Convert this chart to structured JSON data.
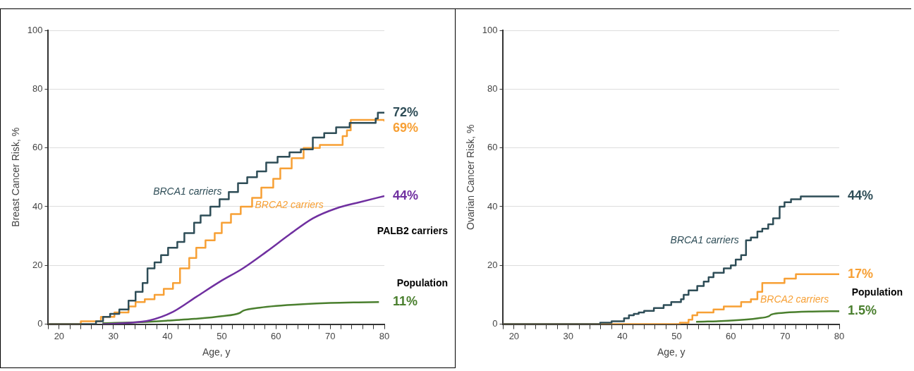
{
  "chart_data": [
    {
      "type": "line",
      "xlabel": "Age, y",
      "ylabel": "Breast Cancer Risk, %",
      "xlim": [
        18,
        80
      ],
      "ylim": [
        0,
        100
      ],
      "xticks": [
        {
          "value": 18,
          "label": null
        },
        20,
        {
          "value": 22,
          "label": null
        },
        {
          "value": 24,
          "label": null
        },
        {
          "value": 26,
          "label": null
        },
        {
          "value": 28,
          "label": null
        },
        30,
        {
          "value": 32,
          "label": null
        },
        {
          "value": 34,
          "label": null
        },
        {
          "value": 36,
          "label": null
        },
        {
          "value": 38,
          "label": null
        },
        40,
        {
          "value": 42,
          "label": null
        },
        {
          "value": 44,
          "label": null
        },
        {
          "value": 46,
          "label": null
        },
        {
          "value": 48,
          "label": null
        },
        50,
        {
          "value": 52,
          "label": null
        },
        {
          "value": 54,
          "label": null
        },
        {
          "value": 56,
          "label": null
        },
        {
          "value": 58,
          "label": null
        },
        60,
        {
          "value": 62,
          "label": null
        },
        {
          "value": 64,
          "label": null
        },
        {
          "value": 66,
          "label": null
        },
        {
          "value": 68,
          "label": null
        },
        70,
        {
          "value": 72,
          "label": null
        },
        {
          "value": 74,
          "label": null
        },
        {
          "value": 76,
          "label": null
        },
        {
          "value": 78,
          "label": null
        },
        80
      ],
      "yticks": [
        0,
        20,
        40,
        60,
        80,
        100
      ],
      "grid": "y",
      "legend": false,
      "marker": "none",
      "line_style": "solid",
      "series": [
        {
          "type": "step",
          "name": "BRCA1 carriers",
          "color": "#2e4d57",
          "x": [
            18,
            26.8,
            28.1,
            29.4,
            31.1,
            32.8,
            34.1,
            35.4,
            36.3,
            37.6,
            38.8,
            40.1,
            41.8,
            43.1,
            44.9,
            46.1,
            47.9,
            49.6,
            51.3,
            53,
            54.7,
            56.5,
            58.2,
            60.3,
            62.5,
            64.6,
            66.8,
            68.9,
            71.1,
            73.6,
            78.4,
            78.8,
            80
          ],
          "values": [
            0,
            1,
            2.5,
            3.5,
            5,
            8,
            11,
            14,
            19,
            21,
            23.5,
            26,
            28,
            31,
            34.5,
            37,
            40,
            42.5,
            45,
            48,
            50,
            52,
            55,
            57,
            58.5,
            59.5,
            63.5,
            65,
            67,
            68.5,
            70,
            72,
            72
          ]
        },
        {
          "type": "step",
          "name": "BRCA2 carriers",
          "color": "#f7a035",
          "x": [
            18,
            24,
            27.7,
            30.2,
            32.8,
            34.1,
            35.8,
            37.6,
            39.3,
            41,
            42.3,
            44,
            45.3,
            47,
            48.7,
            50,
            51.7,
            53.5,
            55.6,
            57.3,
            59.5,
            60.8,
            62.9,
            65.1,
            68.1,
            72.3,
            73.1,
            73.8,
            80
          ],
          "values": [
            0,
            1,
            2.5,
            4,
            6,
            7.5,
            8.5,
            10,
            12,
            14,
            19,
            22.5,
            26,
            28.5,
            31,
            34.5,
            37.5,
            40,
            43,
            46.5,
            49.5,
            53,
            56.5,
            60,
            61,
            64,
            66,
            69.5,
            69
          ]
        },
        {
          "type": "line",
          "name": "PALB2 carriers",
          "color": "#7030a0",
          "x": [
            28,
            32.4,
            36.7,
            41,
            45.3,
            49.6,
            53.9,
            58.2,
            62.5,
            66.8,
            71.1,
            75.4,
            80
          ],
          "values": [
            0,
            0.4,
            1.3,
            4.2,
            9.3,
            14.4,
            19,
            24.6,
            30.5,
            36,
            39.4,
            41.5,
            43.6
          ]
        },
        {
          "type": "line",
          "name": "Population",
          "color": "#4a7f2e",
          "x": [
            28,
            35,
            40,
            45,
            50,
            53.3,
            54,
            57,
            60,
            65,
            70,
            75,
            79
          ],
          "values": [
            0.3,
            0.7,
            1.2,
            1.8,
            2.7,
            3.8,
            4.6,
            5.6,
            6.2,
            6.8,
            7.2,
            7.4,
            7.5
          ]
        }
      ],
      "annotations": [
        "72%",
        "69%",
        "44%",
        "11%"
      ]
    },
    {
      "type": "line",
      "xlabel": "Age, y",
      "ylabel": "Ovarian Cancer Risk, %",
      "xlim": [
        18,
        80
      ],
      "ylim": [
        0,
        100
      ],
      "xticks": [
        {
          "value": 18,
          "label": null
        },
        20,
        {
          "value": 22,
          "label": null
        },
        {
          "value": 24,
          "label": null
        },
        {
          "value": 26,
          "label": null
        },
        {
          "value": 28,
          "label": null
        },
        30,
        {
          "value": 32,
          "label": null
        },
        {
          "value": 34,
          "label": null
        },
        {
          "value": 36,
          "label": null
        },
        {
          "value": 38,
          "label": null
        },
        40,
        {
          "value": 42,
          "label": null
        },
        {
          "value": 44,
          "label": null
        },
        {
          "value": 46,
          "label": null
        },
        {
          "value": 48,
          "label": null
        },
        50,
        {
          "value": 52,
          "label": null
        },
        {
          "value": 54,
          "label": null
        },
        {
          "value": 56,
          "label": null
        },
        {
          "value": 58,
          "label": null
        },
        60,
        {
          "value": 62,
          "label": null
        },
        {
          "value": 64,
          "label": null
        },
        {
          "value": 66,
          "label": null
        },
        {
          "value": 68,
          "label": null
        },
        70,
        {
          "value": 72,
          "label": null
        },
        {
          "value": 74,
          "label": null
        },
        {
          "value": 76,
          "label": null
        },
        {
          "value": 78,
          "label": null
        },
        80
      ],
      "yticks": [
        0,
        20,
        40,
        60,
        80,
        100
      ],
      "grid": "y",
      "legend": false,
      "marker": "none",
      "line_style": "solid",
      "series": [
        {
          "type": "step",
          "name": "BRCA1 carriers",
          "color": "#2e4d57",
          "x": [
            18,
            35.9,
            38,
            40.3,
            41.2,
            42.1,
            43,
            44,
            45.8,
            47.6,
            49,
            50.8,
            51.3,
            52.2,
            53.8,
            55,
            55.9,
            56.8,
            58.7,
            60,
            60.9,
            61.9,
            62.8,
            63.7,
            64.9,
            65.8,
            66.9,
            67.8,
            69,
            69.9,
            71.1,
            72.9,
            80
          ],
          "values": [
            0,
            0.5,
            1,
            2,
            3,
            3.5,
            4,
            4.5,
            5.5,
            6.5,
            7.5,
            8.5,
            10,
            11.5,
            13,
            14.5,
            16,
            17.5,
            19,
            20,
            22,
            23.5,
            28.5,
            29.5,
            31.5,
            32.5,
            34,
            36,
            40,
            41.5,
            42.5,
            43.5,
            43.5
          ]
        },
        {
          "type": "step",
          "name": "BRCA2 carriers",
          "color": "#f7a035",
          "x": [
            18,
            50.6,
            52.2,
            52.9,
            53.8,
            56.8,
            58.7,
            61.9,
            63.7,
            64.9,
            65.8,
            69.9,
            72,
            80
          ],
          "values": [
            0,
            0.5,
            1.5,
            3,
            4,
            5,
            6,
            7.5,
            8.5,
            11,
            14,
            15.5,
            17,
            17
          ]
        },
        {
          "type": "line",
          "name": "Population",
          "color": "#4a7f2e",
          "x": [
            53.6,
            60,
            65,
            67,
            67.5,
            70,
            75,
            80
          ],
          "values": [
            0.8,
            1.2,
            2,
            2.7,
            3.3,
            3.9,
            4.3,
            4.4
          ]
        }
      ],
      "annotations": [
        "44%",
        "17%",
        "1.5%"
      ]
    }
  ]
}
